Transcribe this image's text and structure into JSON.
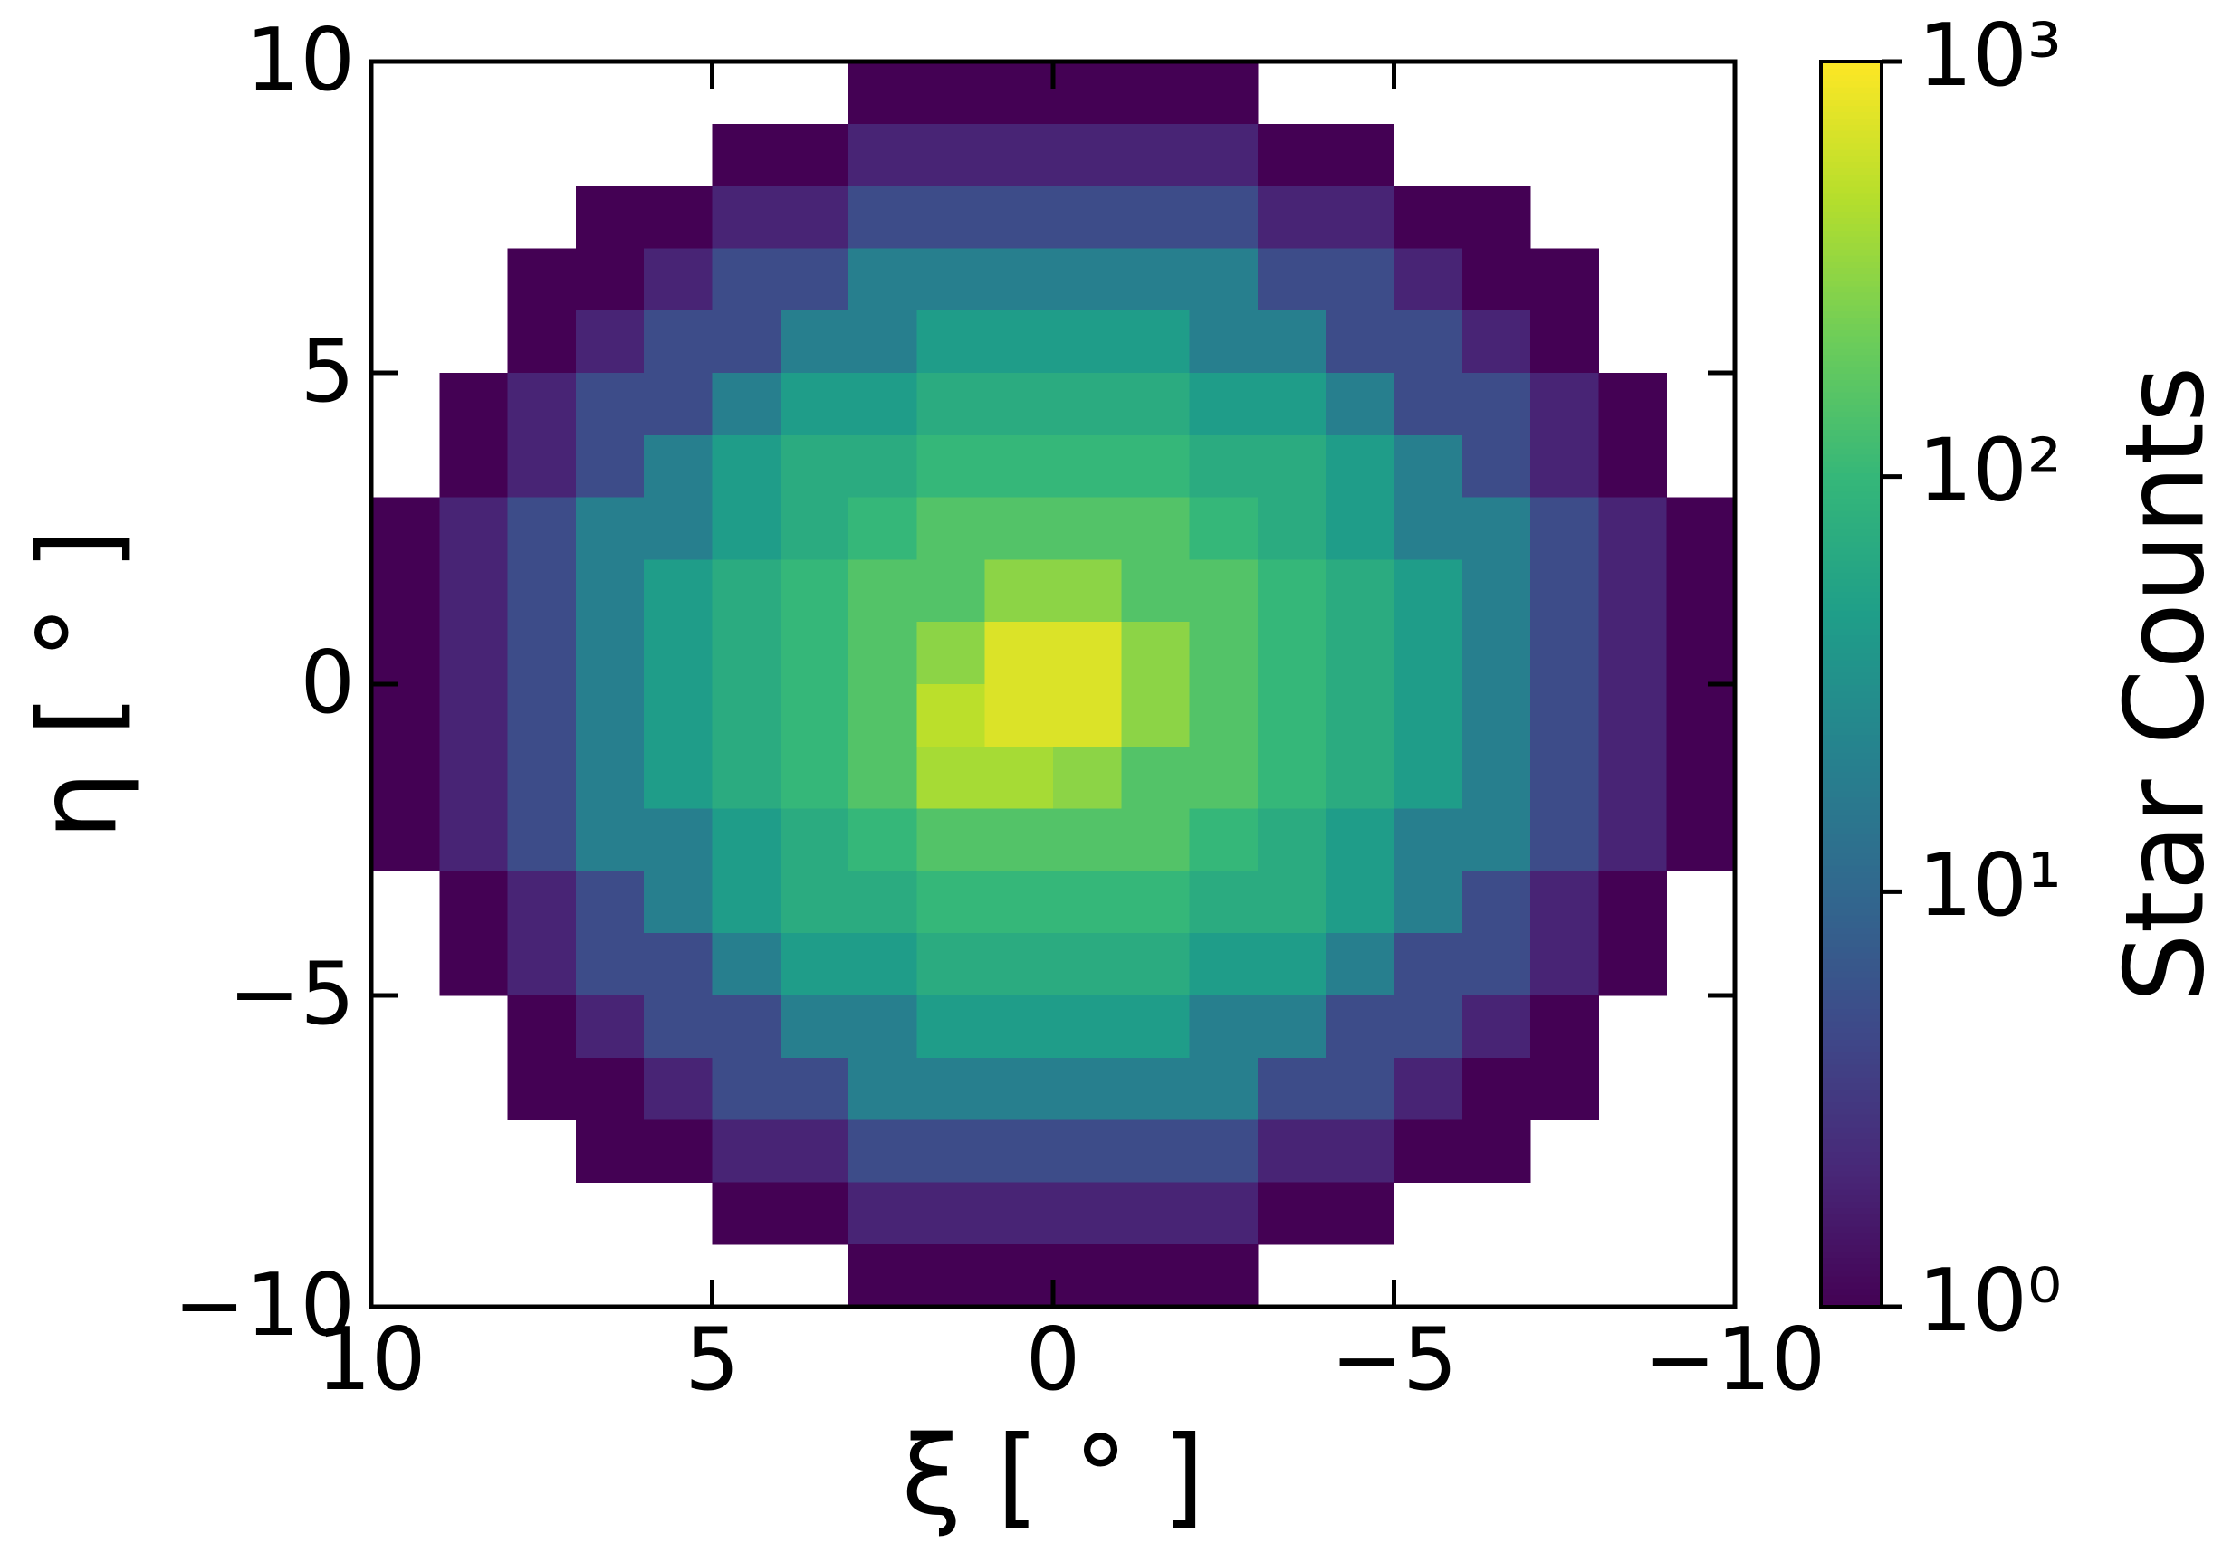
{
  "chart_data": {
    "type": "heatmap",
    "xlabel": "ξ [ ° ]",
    "ylabel": "η [ ° ]",
    "colorbar_label": "Star Counts",
    "xlim": [
      10,
      -10
    ],
    "ylim": [
      -10,
      10
    ],
    "xticks": [
      10,
      5,
      0,
      {
        "value": -5,
        "label": "−5"
      },
      {
        "value": -10,
        "label": "−10"
      }
    ],
    "yticks": [
      {
        "value": -10,
        "label": "−10"
      },
      {
        "value": -5,
        "label": "−5"
      },
      0,
      5,
      10
    ],
    "xbins": [
      10,
      9,
      8,
      7,
      6,
      5,
      4,
      3,
      2,
      1,
      0,
      -1,
      -2,
      -3,
      -4,
      -5,
      -6,
      -7,
      -8,
      -9,
      -10
    ],
    "ybins": [
      10,
      9,
      8,
      7,
      6,
      5,
      4,
      3,
      2,
      1,
      0,
      -1,
      -2,
      -3,
      -4,
      -5,
      -6,
      -7,
      -8,
      -9,
      -10
    ],
    "colormap": "viridis",
    "clog": true,
    "clim": [
      1,
      1000
    ],
    "cticks": [
      {
        "value": 1,
        "label": "10⁰"
      },
      {
        "value": 10,
        "label": "10¹"
      },
      {
        "value": 100,
        "label": "10²"
      },
      {
        "value": 1000,
        "label": "10³"
      }
    ],
    "z": [
      [
        null,
        null,
        null,
        null,
        null,
        null,
        null,
        1,
        1,
        1,
        1,
        1,
        1,
        null,
        null,
        null,
        null,
        null,
        null,
        null
      ],
      [
        null,
        null,
        null,
        null,
        null,
        1,
        1,
        2,
        2,
        2,
        2,
        2,
        2,
        1,
        1,
        null,
        null,
        null,
        null,
        null
      ],
      [
        null,
        null,
        null,
        1,
        1,
        2,
        2,
        5,
        5,
        5,
        5,
        5,
        5,
        2,
        2,
        1,
        1,
        null,
        null,
        null
      ],
      [
        null,
        null,
        1,
        1,
        2,
        5,
        5,
        20,
        20,
        20,
        20,
        20,
        20,
        5,
        5,
        2,
        1,
        1,
        null,
        null
      ],
      [
        null,
        null,
        1,
        2,
        5,
        5,
        20,
        20,
        45,
        45,
        45,
        45,
        20,
        20,
        5,
        5,
        2,
        1,
        null,
        null
      ],
      [
        null,
        1,
        2,
        5,
        5,
        20,
        45,
        45,
        70,
        70,
        70,
        70,
        45,
        45,
        20,
        5,
        5,
        2,
        1,
        null
      ],
      [
        null,
        1,
        2,
        5,
        20,
        45,
        70,
        70,
        100,
        100,
        100,
        100,
        70,
        70,
        45,
        20,
        5,
        2,
        1,
        null
      ],
      [
        1,
        2,
        5,
        20,
        20,
        45,
        70,
        100,
        150,
        150,
        150,
        150,
        100,
        70,
        45,
        20,
        20,
        5,
        2,
        1
      ],
      [
        1,
        2,
        5,
        20,
        45,
        70,
        100,
        150,
        150,
        300,
        300,
        150,
        150,
        100,
        70,
        45,
        20,
        5,
        2,
        1
      ],
      [
        1,
        2,
        5,
        20,
        45,
        70,
        100,
        150,
        300,
        700,
        700,
        300,
        150,
        100,
        70,
        45,
        20,
        5,
        2,
        1
      ],
      [
        1,
        2,
        5,
        20,
        45,
        70,
        100,
        150,
        500,
        700,
        700,
        300,
        150,
        100,
        70,
        45,
        20,
        5,
        2,
        1
      ],
      [
        1,
        2,
        5,
        20,
        45,
        70,
        100,
        150,
        400,
        400,
        300,
        150,
        150,
        100,
        70,
        45,
        20,
        5,
        2,
        1
      ],
      [
        1,
        2,
        5,
        20,
        20,
        45,
        70,
        100,
        150,
        150,
        150,
        150,
        100,
        70,
        45,
        20,
        20,
        5,
        2,
        1
      ],
      [
        null,
        1,
        2,
        5,
        20,
        45,
        70,
        70,
        100,
        100,
        100,
        100,
        70,
        70,
        45,
        20,
        5,
        2,
        1,
        null
      ],
      [
        null,
        1,
        2,
        5,
        5,
        20,
        45,
        45,
        70,
        70,
        70,
        70,
        45,
        45,
        20,
        5,
        5,
        2,
        1,
        null
      ],
      [
        null,
        null,
        1,
        2,
        5,
        5,
        20,
        20,
        45,
        45,
        45,
        45,
        20,
        20,
        5,
        5,
        2,
        1,
        null,
        null
      ],
      [
        null,
        null,
        1,
        1,
        2,
        5,
        5,
        20,
        20,
        20,
        20,
        20,
        20,
        5,
        5,
        2,
        1,
        1,
        null,
        null
      ],
      [
        null,
        null,
        null,
        1,
        1,
        2,
        2,
        5,
        5,
        5,
        5,
        5,
        5,
        2,
        2,
        1,
        1,
        null,
        null,
        null
      ],
      [
        null,
        null,
        null,
        null,
        null,
        1,
        1,
        2,
        2,
        2,
        2,
        2,
        2,
        1,
        1,
        null,
        null,
        null,
        null,
        null
      ],
      [
        null,
        null,
        null,
        null,
        null,
        null,
        null,
        1,
        1,
        1,
        1,
        1,
        1,
        null,
        null,
        null,
        null,
        null,
        null,
        null
      ]
    ]
  }
}
